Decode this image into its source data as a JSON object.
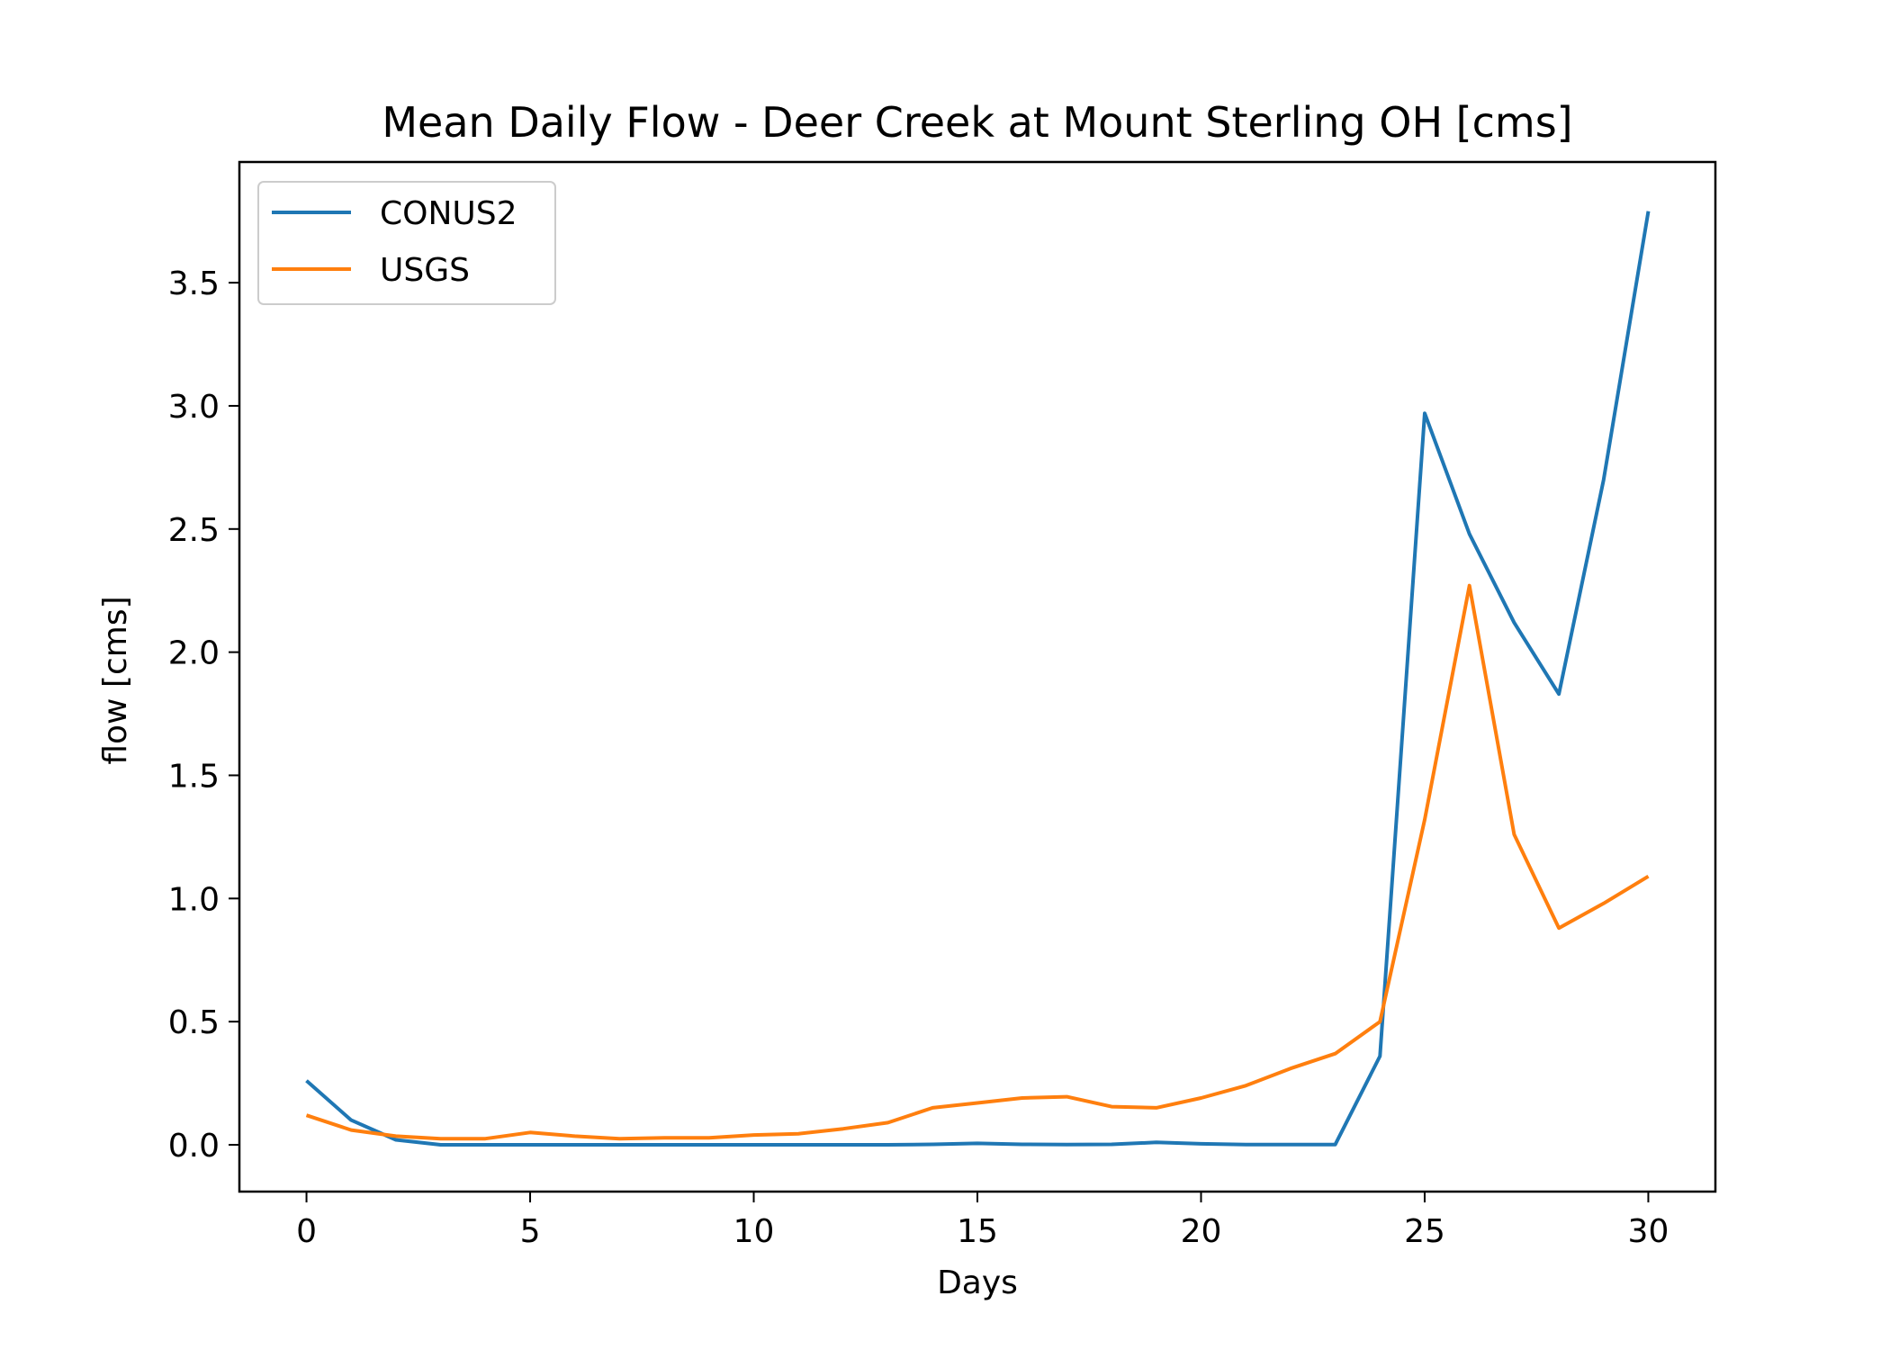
{
  "chart_data": {
    "type": "line",
    "title": "Mean Daily Flow - Deer Creek at Mount Sterling OH [cms]",
    "xlabel": "Days",
    "ylabel": "flow [cms]",
    "xlim": [
      -1.5,
      31.5
    ],
    "ylim": [
      -0.19,
      3.99
    ],
    "xticks": [
      0,
      5,
      10,
      15,
      20,
      25,
      30
    ],
    "xtick_labels": [
      "0",
      "5",
      "10",
      "15",
      "20",
      "25",
      "30"
    ],
    "yticks": [
      0.0,
      0.5,
      1.0,
      1.5,
      2.0,
      2.5,
      3.0,
      3.5
    ],
    "ytick_labels": [
      "0.0",
      "0.5",
      "1.0",
      "1.5",
      "2.0",
      "2.5",
      "3.0",
      "3.5"
    ],
    "grid": false,
    "legend_position": "top-left",
    "x": [
      0,
      1,
      2,
      3,
      4,
      5,
      6,
      7,
      8,
      9,
      10,
      11,
      12,
      13,
      14,
      15,
      16,
      17,
      18,
      19,
      20,
      21,
      22,
      23,
      24,
      25,
      26,
      27,
      28,
      29,
      30
    ],
    "series": [
      {
        "name": "CONUS2",
        "color": "#1f77b4",
        "values": [
          0.26,
          0.1,
          0.02,
          0.0,
          0.0,
          0.0,
          0.0,
          0.0,
          0.0,
          0.0,
          0.0,
          0.0,
          0.0,
          0.0,
          0.002,
          0.006,
          0.002,
          0.001,
          0.002,
          0.01,
          0.004,
          0.001,
          0.001,
          0.001,
          0.36,
          2.97,
          2.48,
          2.12,
          1.83,
          2.7,
          3.79
        ]
      },
      {
        "name": "USGS",
        "color": "#ff7f0e",
        "values": [
          0.12,
          0.06,
          0.035,
          0.025,
          0.025,
          0.05,
          0.035,
          0.025,
          0.028,
          0.028,
          0.04,
          0.045,
          0.065,
          0.09,
          0.15,
          0.17,
          0.19,
          0.195,
          0.155,
          0.15,
          0.19,
          0.24,
          0.31,
          0.37,
          0.5,
          1.32,
          2.27,
          1.26,
          0.88,
          0.98,
          1.09
        ]
      }
    ]
  }
}
